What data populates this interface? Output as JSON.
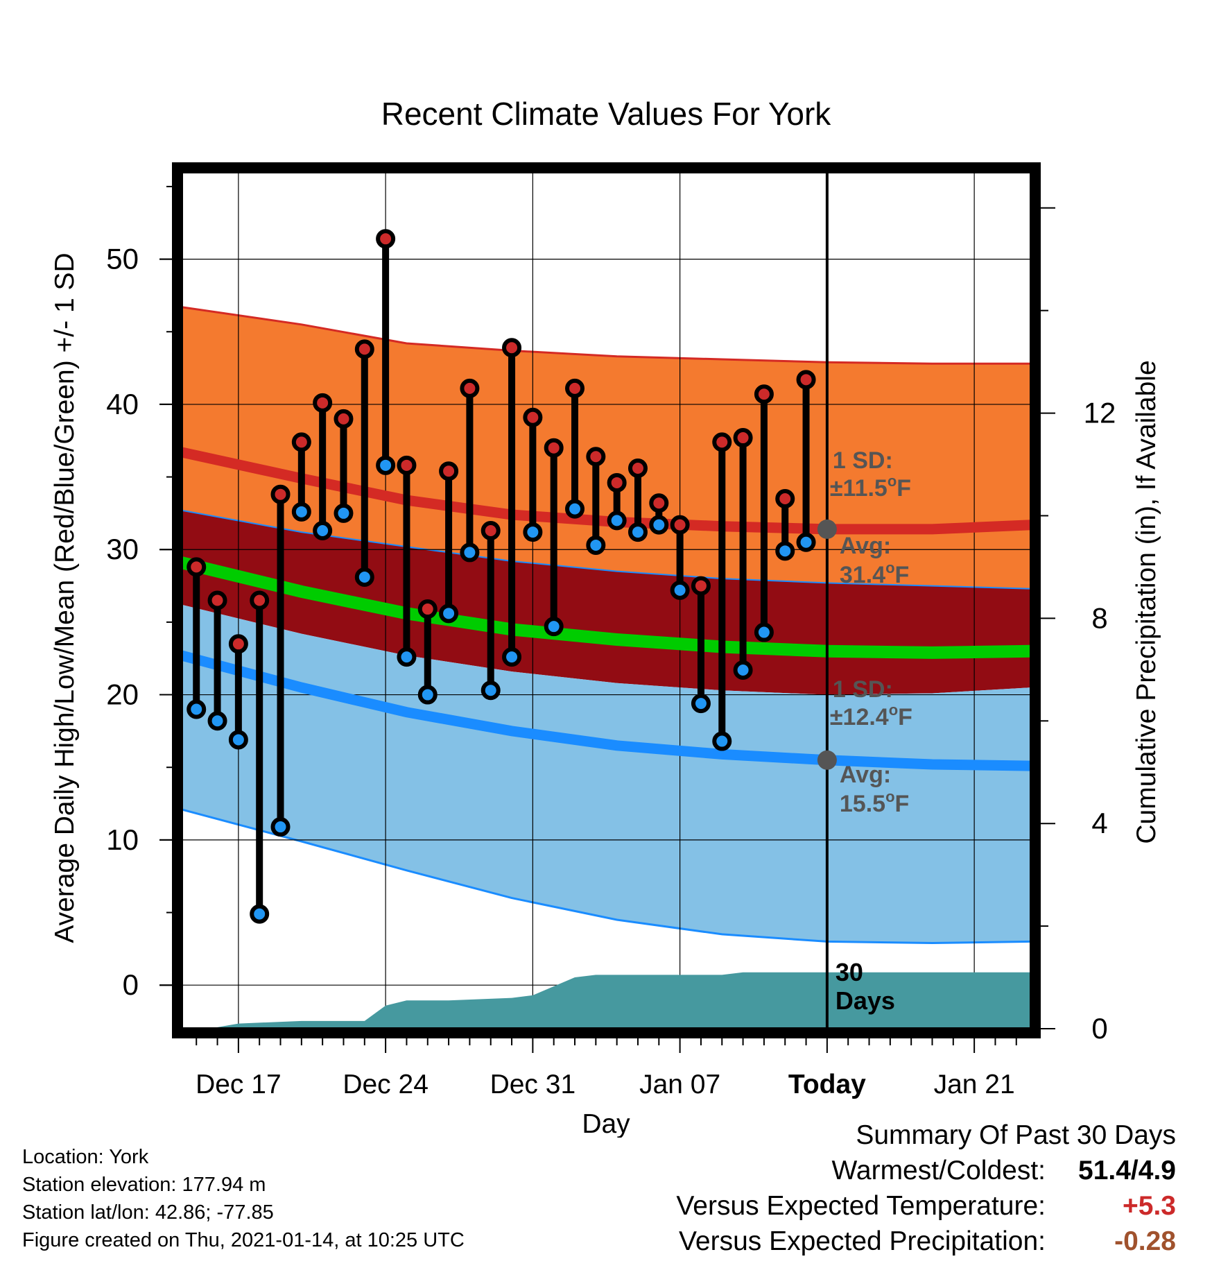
{
  "chart_data": {
    "type": "line",
    "title": "Recent Climate Values For York",
    "xlabel": "Day",
    "ylabel": "Average Daily High/Low/Mean (Red/Blue/Green) +/- 1 SD",
    "ylabel_right": "Cumulative Precipitation (in), If Available",
    "x_tick_labels": [
      "Dec 17",
      "Dec 24",
      "Dec 31",
      "Jan 07",
      "Today",
      "Jan 21"
    ],
    "x_tick_days": [
      2,
      9,
      16,
      23,
      30,
      37
    ],
    "xlim": [
      -0.7,
      39.7
    ],
    "ylim": [
      -3,
      56
    ],
    "y_ticks": [
      0,
      10,
      20,
      30,
      40,
      50
    ],
    "y2lim": [
      0,
      16.7
    ],
    "y2_ticks": [
      0,
      4,
      8,
      12
    ],
    "today_day": 30,
    "day_note": "day 0 = Dec 15",
    "observed": {
      "days": [
        0,
        1,
        2,
        3,
        4,
        5,
        6,
        7,
        8,
        9,
        10,
        11,
        12,
        13,
        14,
        15,
        16,
        17,
        18,
        19,
        20,
        21,
        22,
        23,
        24,
        25,
        26,
        27,
        28,
        29
      ],
      "high": [
        28.8,
        26.5,
        23.5,
        26.5,
        33.8,
        37.4,
        40.1,
        39.0,
        43.8,
        51.4,
        35.8,
        25.9,
        35.4,
        41.1,
        31.3,
        43.9,
        39.1,
        37.0,
        41.1,
        36.4,
        34.6,
        35.6,
        33.2,
        31.7,
        27.5,
        37.4,
        37.7,
        40.7,
        33.5,
        41.7
      ],
      "low": [
        19.0,
        18.2,
        16.9,
        4.9,
        10.9,
        32.6,
        31.3,
        32.5,
        28.1,
        35.8,
        22.6,
        20.0,
        25.6,
        29.8,
        20.3,
        22.6,
        31.2,
        24.7,
        32.8,
        30.3,
        32.0,
        31.2,
        31.7,
        27.2,
        19.4,
        16.8,
        21.7,
        24.3,
        29.9,
        30.5
      ]
    },
    "normals": {
      "days": [
        -0.7,
        5,
        10,
        15,
        20,
        25,
        30,
        35,
        39.7
      ],
      "high_avg": [
        36.7,
        34.9,
        33.4,
        32.4,
        31.9,
        31.6,
        31.4,
        31.4,
        31.7
      ],
      "high_upper": [
        46.7,
        45.5,
        44.2,
        43.7,
        43.3,
        43.1,
        42.9,
        42.8,
        42.8
      ],
      "high_lower": [
        32.7,
        31.2,
        30.2,
        29.2,
        28.5,
        28.0,
        27.7,
        27.5,
        27.3
      ],
      "mean_avg": [
        29.1,
        27.1,
        25.6,
        24.5,
        23.8,
        23.3,
        23.0,
        22.9,
        23.0
      ],
      "mean_upper": [
        28.5,
        26.3,
        24.9,
        23.8,
        23.0,
        22.6,
        22.3,
        22.3,
        22.3
      ],
      "mean_lower": [
        26.2,
        24.2,
        22.7,
        21.6,
        20.8,
        20.3,
        20.0,
        20.1,
        20.5
      ],
      "low_avg": [
        22.7,
        20.5,
        18.8,
        17.5,
        16.5,
        15.9,
        15.5,
        15.2,
        15.1
      ],
      "low_lower": [
        12.1,
        9.9,
        7.9,
        6.0,
        4.5,
        3.5,
        3.0,
        2.9,
        3.0
      ]
    },
    "precip_cumulative": {
      "days": [
        0.6,
        2,
        5,
        6,
        8,
        9,
        10,
        12,
        15,
        16,
        18,
        19,
        22,
        25,
        26,
        30,
        39.7
      ],
      "inches": [
        0,
        0.1,
        0.15,
        0.15,
        0.15,
        0.45,
        0.55,
        0.55,
        0.6,
        0.65,
        1.0,
        1.05,
        1.05,
        1.05,
        1.1,
        1.1,
        1.1
      ]
    },
    "annotations": {
      "high_sd": "1 SD:",
      "high_sd_val": "±11.5",
      "high_avg_label": "Avg:",
      "high_avg_val": "31.4",
      "low_sd": "1 SD:",
      "low_sd_val": "±12.4",
      "low_avg_label": "Avg:",
      "low_avg_val": "15.5",
      "deg_unit": "F",
      "days_label_1": "30",
      "days_label_2": "Days"
    },
    "colors": {
      "high_band": "#f47a2f",
      "high_line": "#d42a24",
      "mean_band": "#920c13",
      "mean_line": "#00cc00",
      "low_band": "#84c1e6",
      "low_line": "#1a8cff",
      "precip": "#46999f",
      "high_dot": "#cc2a2a",
      "low_dot": "#2196f3",
      "annotation": "#555555"
    }
  },
  "footer": {
    "location": "Location: York",
    "elevation": "Station elevation: 177.94 m",
    "latlon": "Station lat/lon: 42.86; -77.85",
    "created": "Figure created on Thu, 2021-01-14, at 10:25 UTC"
  },
  "summary": {
    "title": "Summary Of Past 30 Days",
    "warm_cold_label": "Warmest/Coldest:",
    "warm_cold_value": "51.4/4.9",
    "temp_label": "Versus Expected Temperature:",
    "temp_value": "+5.3",
    "temp_color": "#cc2a2a",
    "precip_label": "Versus Expected Precipitation:",
    "precip_value": "-0.28",
    "precip_color": "#a0522d"
  }
}
